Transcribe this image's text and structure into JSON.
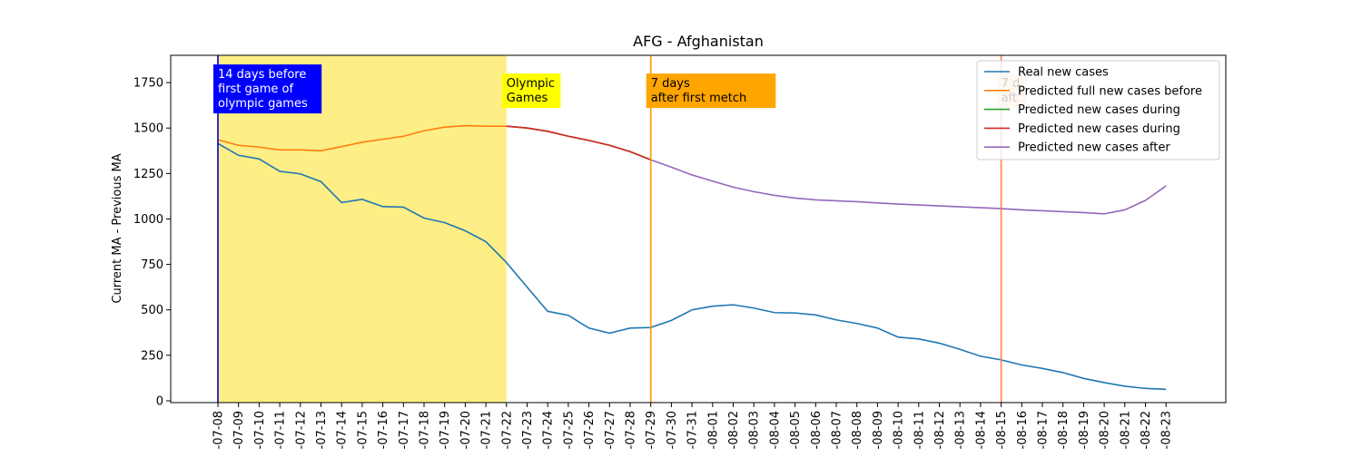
{
  "chart_data": {
    "type": "line",
    "title": "AFG - Afghanistan",
    "ylabel": "Current MA - Previous MA",
    "xlabel": "",
    "ylim": [
      -10,
      1900
    ],
    "yticks": [
      0,
      250,
      500,
      750,
      1000,
      1250,
      1500,
      1750
    ],
    "grid": false,
    "legend_position": "top-right",
    "categories": [
      "2021-07-08",
      "2021-07-09",
      "2021-07-10",
      "2021-07-11",
      "2021-07-12",
      "2021-07-13",
      "2021-07-14",
      "2021-07-15",
      "2021-07-16",
      "2021-07-17",
      "2021-07-18",
      "2021-07-19",
      "2021-07-20",
      "2021-07-21",
      "2021-07-22",
      "2021-07-23",
      "2021-07-24",
      "2021-07-25",
      "2021-07-26",
      "2021-07-27",
      "2021-07-28",
      "2021-07-29",
      "2021-07-30",
      "2021-07-31",
      "2021-08-01",
      "2021-08-02",
      "2021-08-03",
      "2021-08-04",
      "2021-08-05",
      "2021-08-06",
      "2021-08-07",
      "2021-08-08",
      "2021-08-09",
      "2021-08-10",
      "2021-08-11",
      "2021-08-12",
      "2021-08-13",
      "2021-08-14",
      "2021-08-15",
      "2021-08-16",
      "2021-08-17",
      "2021-08-18",
      "2021-08-19",
      "2021-08-20",
      "2021-08-21",
      "2021-08-22",
      "2021-08-23"
    ],
    "tick_labels": [
      "-07-08",
      "-07-09",
      "-07-10",
      "-07-11",
      "-07-12",
      "-07-13",
      "-07-14",
      "-07-15",
      "-07-16",
      "-07-17",
      "-07-18",
      "-07-19",
      "-07-20",
      "-07-21",
      "-07-22",
      "-07-23",
      "-07-24",
      "-07-25",
      "-07-26",
      "-07-27",
      "-07-28",
      "-07-29",
      "-07-30",
      "-07-31",
      "-08-01",
      "-08-02",
      "-08-03",
      "-08-04",
      "-08-05",
      "-08-06",
      "-08-07",
      "-08-08",
      "-08-09",
      "-08-10",
      "-08-11",
      "-08-12",
      "-08-13",
      "-08-14",
      "-08-15",
      "-08-16",
      "-08-17",
      "-08-18",
      "-08-19",
      "-08-20",
      "-08-21",
      "-08-22",
      "-08-23"
    ],
    "series": [
      {
        "name": "Real new cases",
        "color": "#1f77b4",
        "x": [
          "2021-07-08",
          "2021-07-09",
          "2021-07-10",
          "2021-07-11",
          "2021-07-12",
          "2021-07-13",
          "2021-07-14",
          "2021-07-15",
          "2021-07-16",
          "2021-07-17",
          "2021-07-18",
          "2021-07-19",
          "2021-07-20",
          "2021-07-21",
          "2021-07-22",
          "2021-07-23",
          "2021-07-24",
          "2021-07-25",
          "2021-07-26",
          "2021-07-27",
          "2021-07-28",
          "2021-07-29",
          "2021-07-30",
          "2021-07-31",
          "2021-08-01",
          "2021-08-02",
          "2021-08-03",
          "2021-08-04",
          "2021-08-05",
          "2021-08-06",
          "2021-08-07",
          "2021-08-08",
          "2021-08-09",
          "2021-08-10",
          "2021-08-11",
          "2021-08-12",
          "2021-08-13",
          "2021-08-14",
          "2021-08-15",
          "2021-08-16",
          "2021-08-17",
          "2021-08-18",
          "2021-08-19",
          "2021-08-20",
          "2021-08-21",
          "2021-08-22",
          "2021-08-23"
        ],
        "values": [
          1415,
          1350,
          1330,
          1262,
          1248,
          1205,
          1090,
          1108,
          1068,
          1065,
          1005,
          980,
          935,
          875,
          760,
          625,
          492,
          470,
          400,
          372,
          400,
          403,
          442,
          500,
          520,
          528,
          510,
          485,
          483,
          472,
          445,
          425,
          400,
          350,
          340,
          317,
          283,
          245,
          225,
          197,
          178,
          155,
          123,
          100,
          80,
          68,
          63
        ]
      },
      {
        "name": "Predicted full new cases before",
        "color": "#ff7f0e",
        "x": [
          "2021-07-08",
          "2021-07-09",
          "2021-07-10",
          "2021-07-11",
          "2021-07-12",
          "2021-07-13",
          "2021-07-14",
          "2021-07-15",
          "2021-07-16",
          "2021-07-17",
          "2021-07-18",
          "2021-07-19",
          "2021-07-20",
          "2021-07-21",
          "2021-07-22",
          "2021-07-23",
          "2021-07-24",
          "2021-07-25",
          "2021-07-26",
          "2021-07-27",
          "2021-07-28",
          "2021-07-29"
        ],
        "values": [
          1435,
          1405,
          1395,
          1380,
          1380,
          1375,
          1398,
          1422,
          1438,
          1455,
          1485,
          1505,
          1513,
          1510,
          1510,
          1500,
          1482,
          1455,
          1432,
          1405,
          1370,
          1325
        ]
      },
      {
        "name": "Predicted new cases during",
        "color": "#2ca02c",
        "x": [
          "2021-07-22",
          "2021-07-23",
          "2021-07-24",
          "2021-07-25",
          "2021-07-26",
          "2021-07-27",
          "2021-07-28",
          "2021-07-29"
        ],
        "values": [
          1510,
          1500,
          1482,
          1455,
          1432,
          1405,
          1370,
          1325
        ]
      },
      {
        "name": "Predicted new cases during",
        "color": "#d62728",
        "x": [
          "2021-07-22",
          "2021-07-23",
          "2021-07-24",
          "2021-07-25",
          "2021-07-26",
          "2021-07-27",
          "2021-07-28",
          "2021-07-29"
        ],
        "values": [
          1510,
          1500,
          1482,
          1455,
          1432,
          1405,
          1370,
          1325
        ]
      },
      {
        "name": "Predicted new cases after",
        "color": "#9467bd",
        "x": [
          "2021-07-29",
          "2021-07-30",
          "2021-07-31",
          "2021-08-01",
          "2021-08-02",
          "2021-08-03",
          "2021-08-04",
          "2021-08-05",
          "2021-08-06",
          "2021-08-07",
          "2021-08-08",
          "2021-08-09",
          "2021-08-10",
          "2021-08-11",
          "2021-08-12",
          "2021-08-13",
          "2021-08-14",
          "2021-08-15",
          "2021-08-16",
          "2021-08-17",
          "2021-08-18",
          "2021-08-19",
          "2021-08-20",
          "2021-08-21",
          "2021-08-22",
          "2021-08-23"
        ],
        "values": [
          1325,
          1285,
          1242,
          1208,
          1175,
          1150,
          1130,
          1115,
          1105,
          1100,
          1095,
          1088,
          1082,
          1077,
          1072,
          1067,
          1062,
          1057,
          1050,
          1045,
          1040,
          1035,
          1028,
          1050,
          1102,
          1182
        ]
      }
    ],
    "shaded_region": {
      "from": "2021-07-08",
      "to": "2021-07-22",
      "color": "#fdee85"
    },
    "vlines": [
      {
        "x": "2021-07-08",
        "color": "#0000cc"
      },
      {
        "x": "2021-07-29",
        "color": "#ff9900"
      },
      {
        "x": "2021-08-15",
        "color": "#ff7f50"
      }
    ],
    "annotations": [
      {
        "x": "2021-07-08",
        "y": 1750,
        "text": "14 days before\nfirst game of\nolympic games",
        "bg": "#0000ff",
        "color": "#ffffff"
      },
      {
        "x": "2021-07-22",
        "y": 1700,
        "text": "Olympic\nGames",
        "bg": "#ffff00",
        "color": "#000000"
      },
      {
        "x": "2021-07-29",
        "y": 1700,
        "text": "7 days\nafter first metch",
        "bg": "#ffa500",
        "color": "#000000"
      },
      {
        "x": "2021-08-15",
        "y": 1700,
        "text": "7 d\naft",
        "bg": "#ffdab9",
        "color": "#000000"
      }
    ]
  }
}
